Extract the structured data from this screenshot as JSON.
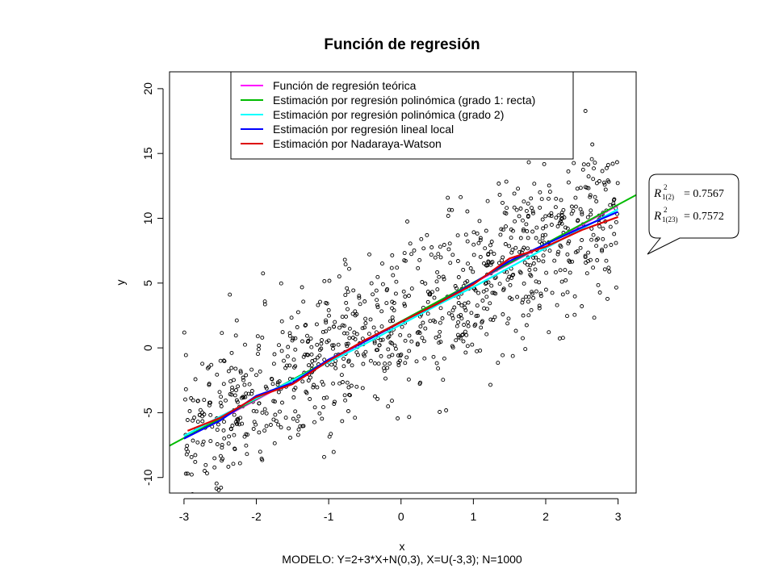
{
  "chart_data": {
    "type": "scatter",
    "title": "Función de regresión",
    "xlabel": "x",
    "ylabel": "y",
    "subtitle": "MODELO: Y=2+3*X+N(0,3), X=U(-3,3);  N=1000",
    "xlim": [
      -3.2,
      3.25
    ],
    "ylim": [
      -11.2,
      21.3
    ],
    "xticks": [
      "-3",
      "-2",
      "-1",
      "0",
      "1",
      "2",
      "3"
    ],
    "yticks": [
      "-10",
      "-5",
      "0",
      "5",
      "10",
      "15",
      "20"
    ],
    "points": {
      "n": 1000,
      "x_range": [
        -3,
        3
      ],
      "model": "y = 2 + 3*x + N(0,3)",
      "color": "#000000",
      "shape": "open-circle"
    },
    "series": [
      {
        "name": "Función de regresión teórica",
        "color": "#ff00ff",
        "x": [
          -3,
          -2.5,
          -2,
          -1.5,
          -1,
          -0.5,
          0,
          0.5,
          1,
          1.5,
          2,
          2.5,
          3
        ],
        "y": [
          -7,
          -5.5,
          -4,
          -2.5,
          -1,
          0.5,
          2,
          3.5,
          5,
          6.5,
          8,
          9.5,
          11
        ]
      },
      {
        "name": "Estimación por regresión polinómica (grado 1: recta)",
        "color": "#00bb00",
        "x": [
          -3.2,
          3.25
        ],
        "y": [
          -7.55,
          11.8
        ]
      },
      {
        "name": "Estimación por regresión polinómica (grado 2)",
        "color": "#00ffff",
        "x": [
          -3,
          -2.5,
          -2,
          -1.5,
          -1,
          -0.5,
          0,
          0.5,
          1,
          1.5,
          2,
          2.5,
          3
        ],
        "y": [
          -6.8,
          -5.3,
          -3.9,
          -2.5,
          -1.1,
          0.3,
          1.8,
          3.3,
          4.7,
          6.2,
          7.7,
          9.2,
          10.7
        ]
      },
      {
        "name": "Estimación por regresión lineal local",
        "color": "#0000ff",
        "x": [
          -3,
          -2.5,
          -2,
          -1.5,
          -1,
          -0.5,
          0,
          0.5,
          1,
          1.5,
          2,
          2.5,
          3
        ],
        "y": [
          -7,
          -5.6,
          -3.7,
          -2.7,
          -0.9,
          0.5,
          2,
          3.4,
          5,
          6.7,
          8,
          9.3,
          10.5
        ]
      },
      {
        "name": "Estimación por Nadaraya-Watson",
        "color": "#dd0000",
        "x": [
          -2.95,
          -2.5,
          -2,
          -1.5,
          -1,
          -0.5,
          0,
          0.5,
          1,
          1.5,
          2,
          2.5,
          3
        ],
        "y": [
          -6.4,
          -5.4,
          -3.8,
          -2.8,
          -1.0,
          0.6,
          2.0,
          3.4,
          4.9,
          6.9,
          7.8,
          9.1,
          10.1
        ]
      }
    ],
    "legend": "top, inside plot",
    "grid": false,
    "annotations": [
      {
        "label": "R²₁₍₂₎",
        "value": "= 0.7567"
      },
      {
        "label": "R²₁₍₂₃₎",
        "value": "= 0.7572"
      }
    ]
  },
  "callout": {
    "r_symbol": "R",
    "sup": "2",
    "row1_sub": "1(2)",
    "row1_value": "= 0.7567",
    "row2_sub": "1(23)",
    "row2_value": "= 0.7572"
  }
}
